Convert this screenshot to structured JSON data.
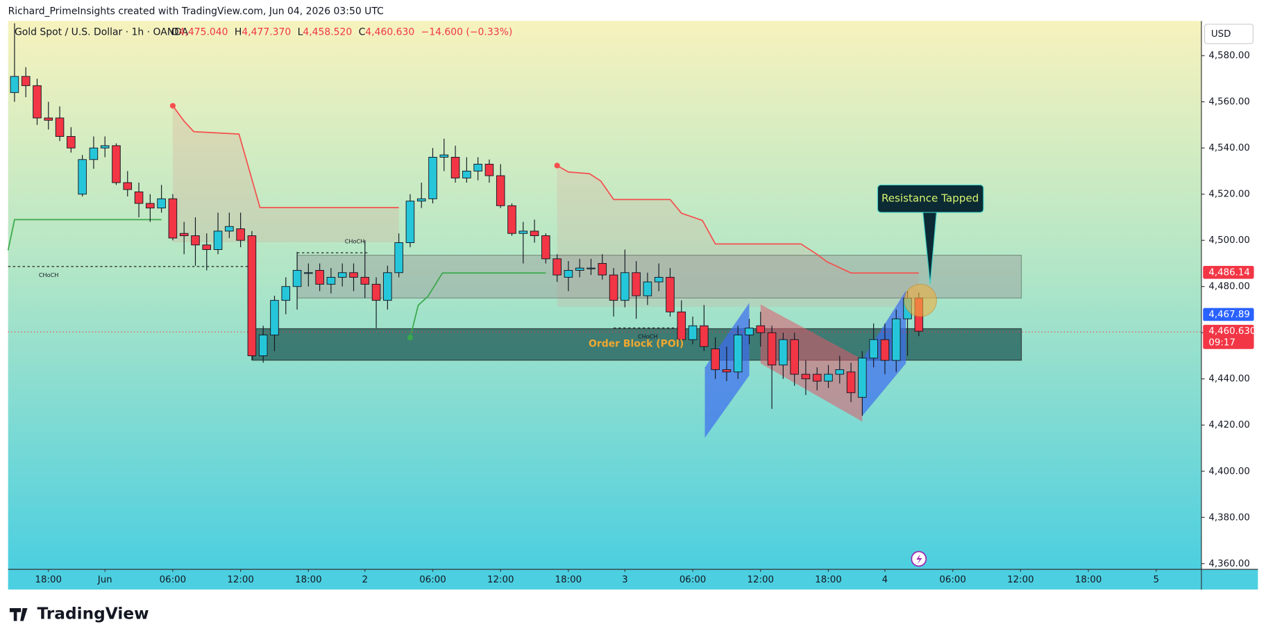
{
  "header": "Richard_PrimeInsights created with TradingView.com, Jun 04, 2026 03:50 UTC",
  "brand": "TradingView",
  "chart_data": {
    "type": "candlestick",
    "title": "Gold Spot / U.S. Dollar · 1h · OANDA",
    "ohlc_legend": [
      {
        "key": "O",
        "text": "4,475.040"
      },
      {
        "key": "H",
        "text": "4,477.370"
      },
      {
        "key": "L",
        "text": "4,458.520"
      },
      {
        "key": "C",
        "text": "4,460.630"
      },
      {
        "key": "",
        "text": "−14.600 (−0.33%)"
      }
    ],
    "currency": "USD",
    "up_color": "#26c6da",
    "down_color": "#f23645",
    "open": [
      4564,
      4571,
      4567,
      4553,
      4553,
      4545,
      4520,
      4535,
      4540,
      4541,
      4525,
      4521,
      4516,
      4514,
      4518,
      4503,
      4502,
      4498,
      4496,
      4504,
      4505,
      4502,
      4450,
      4459,
      4474,
      4480,
      4486,
      4487,
      4481,
      4484,
      4486,
      4484,
      4481,
      4474,
      4486,
      4499,
      4517,
      4518,
      4536,
      4536,
      4527,
      4530,
      4533,
      4528,
      4515,
      4503,
      4504,
      4502,
      4492,
      4484,
      4487,
      4488,
      4490,
      4485,
      4474,
      4486,
      4476,
      4482,
      4484,
      4469,
      4457,
      4463,
      4453,
      4444,
      4443,
      4459,
      4463,
      4460,
      4446,
      4457,
      4442,
      4442,
      4439,
      4442,
      4443,
      4432,
      4449,
      4457,
      4448,
      4466,
      4475.04
    ],
    "high": [
      4594,
      4575,
      4570,
      4560,
      4558,
      4549,
      4537,
      4545,
      4545,
      4542,
      4530,
      4525,
      4520,
      4524,
      4520,
      4508,
      4510,
      4503,
      4512,
      4512,
      4512,
      4504,
      4463,
      4476,
      4484,
      4495,
      4490,
      4490,
      4488,
      4490,
      4490,
      4500,
      4484,
      4489,
      4503,
      4520,
      4525,
      4540,
      4544,
      4541,
      4536,
      4536,
      4535,
      4533,
      4516,
      4508,
      4509,
      4503,
      4494,
      4491,
      4492,
      4492,
      4494,
      4488,
      4496,
      4491,
      4486,
      4490,
      4488,
      4474,
      4467,
      4472,
      4458,
      4454,
      4463,
      4466,
      4469,
      4463,
      4460,
      4460,
      4448,
      4445,
      4446,
      4450,
      4447,
      4452,
      4464,
      4464,
      4470,
      4478,
      4477.37
    ],
    "low": [
      4560,
      4562,
      4550,
      4548,
      4543,
      4538,
      4519,
      4531,
      4536,
      4524,
      4519,
      4510,
      4508,
      4512,
      4500,
      4494,
      4489,
      4487,
      4494,
      4501,
      4497,
      4448,
      4447,
      4452,
      4468,
      4470,
      4480,
      4478,
      4477,
      4480,
      4478,
      4475,
      4462,
      4470,
      4484,
      4497,
      4514,
      4516,
      4530,
      4525,
      4525,
      4526,
      4525,
      4514,
      4502,
      4490,
      4499,
      4490,
      4482,
      4478,
      4484,
      4485,
      4483,
      4467,
      4471,
      4466,
      4472,
      4478,
      4467,
      4456,
      4455,
      4452,
      4440,
      4439,
      4440,
      4455,
      4454,
      4427,
      4440,
      4437,
      4433,
      4435,
      4436,
      4438,
      4430,
      4424,
      4445,
      4442,
      4443,
      4450,
      4458.52
    ],
    "close": [
      4571,
      4567,
      4553,
      4552,
      4545,
      4540,
      4535,
      4540,
      4541,
      4525,
      4522,
      4516,
      4514,
      4518,
      4501,
      4502,
      4498,
      4496,
      4504,
      4506,
      4500,
      4450,
      4459,
      4474,
      4480,
      4487,
      4486,
      4481,
      4484,
      4486,
      4484,
      4481,
      4474,
      4486,
      4499,
      4517,
      4518,
      4536,
      4537,
      4527,
      4530,
      4533,
      4528,
      4515,
      4503,
      4504,
      4502,
      4492,
      4485,
      4487,
      4488,
      4488,
      4485,
      4474,
      4486,
      4476,
      4482,
      4484,
      4469,
      4457,
      4463,
      4454,
      4444,
      4443,
      4459,
      4462,
      4460,
      4446,
      4457,
      4442,
      4440,
      4439,
      4442,
      4444,
      4434,
      4449,
      4457,
      4448,
      4466,
      4475,
      4460.63
    ],
    "xlim": [
      -0.57,
      105
    ],
    "xticks": [
      {
        "value": 3,
        "label": "18:00"
      },
      {
        "value": 8,
        "label": "Jun"
      },
      {
        "value": 14,
        "label": "06:00"
      },
      {
        "value": 20,
        "label": "12:00"
      },
      {
        "value": 26,
        "label": "18:00"
      },
      {
        "value": 31,
        "label": "2"
      },
      {
        "value": 37,
        "label": "06:00"
      },
      {
        "value": 43,
        "label": "12:00"
      },
      {
        "value": 49,
        "label": "18:00"
      },
      {
        "value": 54,
        "label": "3"
      },
      {
        "value": 60,
        "label": "06:00"
      },
      {
        "value": 66,
        "label": "12:00"
      },
      {
        "value": 72,
        "label": "18:00"
      },
      {
        "value": 77,
        "label": "4"
      },
      {
        "value": 83,
        "label": "06:00"
      },
      {
        "value": 89,
        "label": "12:00"
      },
      {
        "value": 95,
        "label": "18:00"
      },
      {
        "value": 101,
        "label": "5"
      }
    ],
    "ylim": [
      4357.5,
      4595
    ],
    "yticks": [
      {
        "value": 4360,
        "label": "4,360.00"
      },
      {
        "value": 4380,
        "label": "4,380.00"
      },
      {
        "value": 4400,
        "label": "4,400.00"
      },
      {
        "value": 4420,
        "label": "4,420.00"
      },
      {
        "value": 4440,
        "label": "4,440.00"
      },
      {
        "value": 4460,
        "label": "4,460.00"
      },
      {
        "value": 4480,
        "label": "4,480.00"
      },
      {
        "value": 4500,
        "label": "4,500.00"
      },
      {
        "value": 4520,
        "label": "4,520.00"
      },
      {
        "value": 4540,
        "label": "4,540.00"
      },
      {
        "value": 4560,
        "label": "4,560.00"
      },
      {
        "value": 4580,
        "label": "4,580.00"
      }
    ],
    "price_labels": [
      {
        "value": 4486.14,
        "label": "4,486.14",
        "color": "#f23645"
      },
      {
        "value": 4467.89,
        "label": "4,467.89",
        "color": "#2962ff"
      },
      {
        "value": 4460.63,
        "label": "4,460.630",
        "color": "#f23645"
      }
    ],
    "countdown": "09:17",
    "annotations": [
      "Resistance Tapped",
      "Order Block (POI)",
      "CHoCH",
      "CHoCH",
      "CHoCH"
    ]
  }
}
